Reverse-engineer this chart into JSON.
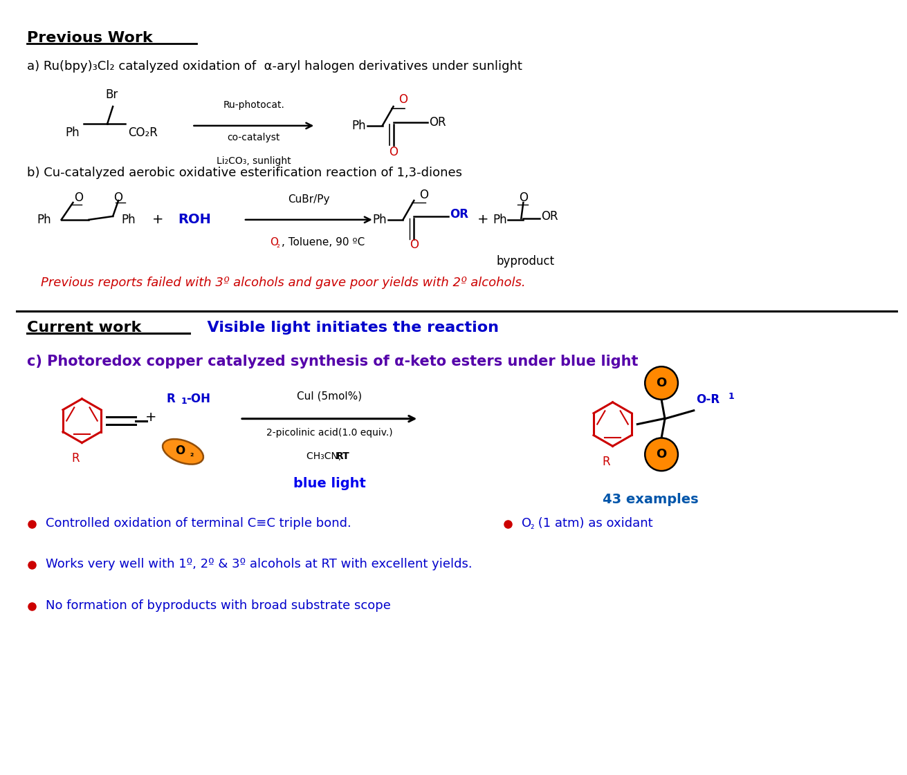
{
  "bg_color": "#ffffff",
  "title_prev": "Previous Work",
  "title_curr": "Current work",
  "curr_subtitle": "  Visible light initiates the reaction",
  "line_a": "a) Ru(bpy)₃Cl₂ catalyzed oxidation of  α-aryl halogen derivatives under sunlight",
  "line_b": "b) Cu-catalyzed aerobic oxidative esterification reaction of 1,3-diones",
  "line_c": "c) Photoredox copper catalyzed synthesis of α-keto esters under blue light",
  "prev_report_line": "Previous reports failed with 3º alcohols and gave poor yields with 2º alcohols.",
  "bullet1": "Controlled oxidation of terminal C≡C triple bond.",
  "bullet2": "Works very well with 1º, 2º & 3º alcohols at RT with excellent yields.",
  "bullet3": "No formation of byproducts with broad substrate scope",
  "examples": "43 examples",
  "blue_light": "blue light",
  "cul_line1": "CuI (5mol%)",
  "cul_line2": "2-picolinic acid(1.0 equiv.)",
  "cul_line3": "CH₃CN, ",
  "cul_bold": "RT",
  "rubpy_line1": "Ru-photocat.",
  "rubpy_line2": "co-catalyst",
  "rubpy_line3": "Li₂CO₃, sunlight",
  "cubr_line1": "CuBr/Py",
  "byproduct": "byproduct"
}
